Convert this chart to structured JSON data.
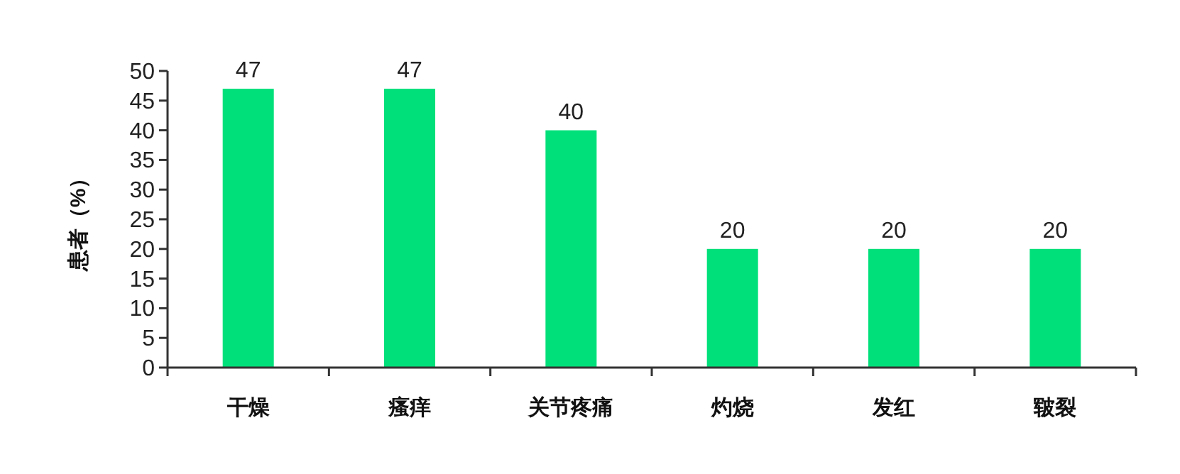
{
  "chart_data": {
    "type": "bar",
    "ylabel": "患者（%）",
    "categories": [
      "干燥",
      "瘙痒",
      "关节疼痛",
      "灼烧",
      "发红",
      "皲裂"
    ],
    "values": [
      47,
      47,
      40,
      20,
      20,
      20
    ],
    "color": "#00e07a",
    "ylim": [
      0,
      50
    ],
    "yticks": [
      0,
      5,
      10,
      15,
      20,
      25,
      30,
      35,
      40,
      45,
      50
    ],
    "data_labels": true,
    "grid": false
  }
}
